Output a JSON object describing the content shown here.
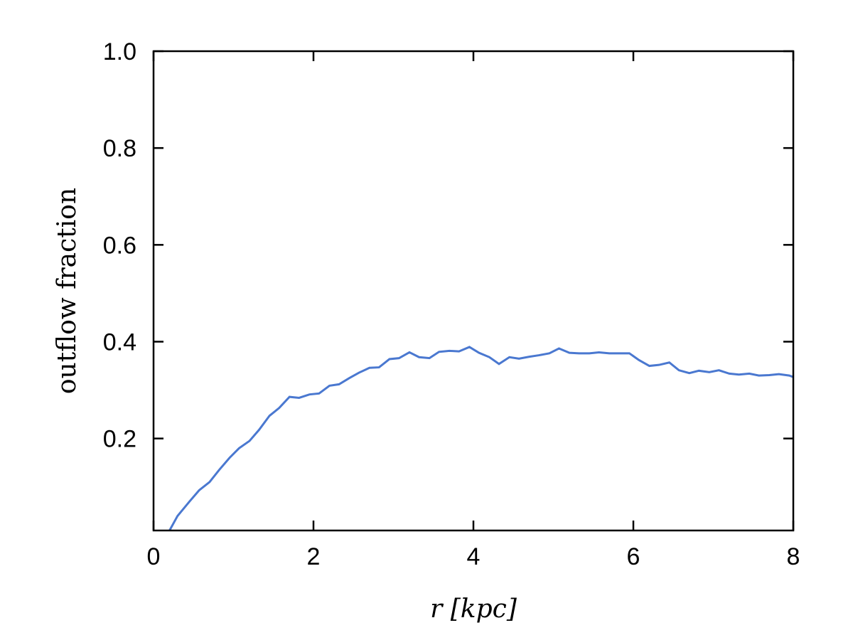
{
  "chart_data": {
    "type": "line",
    "xlabel": "r [kpc]",
    "ylabel": "outflow fraction",
    "x": [
      0.2,
      0.3,
      0.45,
      0.57,
      0.7,
      0.82,
      0.95,
      1.07,
      1.2,
      1.32,
      1.45,
      1.57,
      1.7,
      1.82,
      1.95,
      2.07,
      2.2,
      2.32,
      2.45,
      2.57,
      2.7,
      2.82,
      2.95,
      3.07,
      3.2,
      3.32,
      3.45,
      3.57,
      3.7,
      3.82,
      3.95,
      4.07,
      4.2,
      4.32,
      4.45,
      4.57,
      4.7,
      4.82,
      4.95,
      5.07,
      5.2,
      5.32,
      5.45,
      5.57,
      5.7,
      5.82,
      5.95,
      6.07,
      6.2,
      6.32,
      6.45,
      6.57,
      6.7,
      6.82,
      6.95,
      7.07,
      7.2,
      7.32,
      7.45,
      7.57,
      7.7,
      7.82,
      7.95,
      8.0
    ],
    "series": [
      {
        "color": "#4a78d0",
        "values": [
          0.01,
          0.04,
          0.07,
          0.093,
          0.11,
          0.135,
          0.16,
          0.18,
          0.195,
          0.218,
          0.247,
          0.263,
          0.286,
          0.284,
          0.291,
          0.293,
          0.309,
          0.312,
          0.325,
          0.336,
          0.346,
          0.347,
          0.364,
          0.366,
          0.378,
          0.368,
          0.366,
          0.379,
          0.381,
          0.38,
          0.389,
          0.377,
          0.368,
          0.354,
          0.368,
          0.365,
          0.369,
          0.372,
          0.376,
          0.386,
          0.377,
          0.376,
          0.376,
          0.378,
          0.376,
          0.376,
          0.376,
          0.362,
          0.35,
          0.352,
          0.357,
          0.341,
          0.335,
          0.34,
          0.337,
          0.341,
          0.334,
          0.332,
          0.334,
          0.33,
          0.331,
          0.333,
          0.33,
          0.327
        ]
      }
    ],
    "xlim": [
      0,
      8
    ],
    "xticks": [
      0,
      2,
      4,
      6,
      8
    ],
    "ylim": [
      0.01,
      1.0
    ],
    "yticks": [
      0.2,
      0.4,
      0.6,
      0.8,
      {
        "value": 1.0,
        "label": "1.0"
      }
    ],
    "grid": false
  }
}
